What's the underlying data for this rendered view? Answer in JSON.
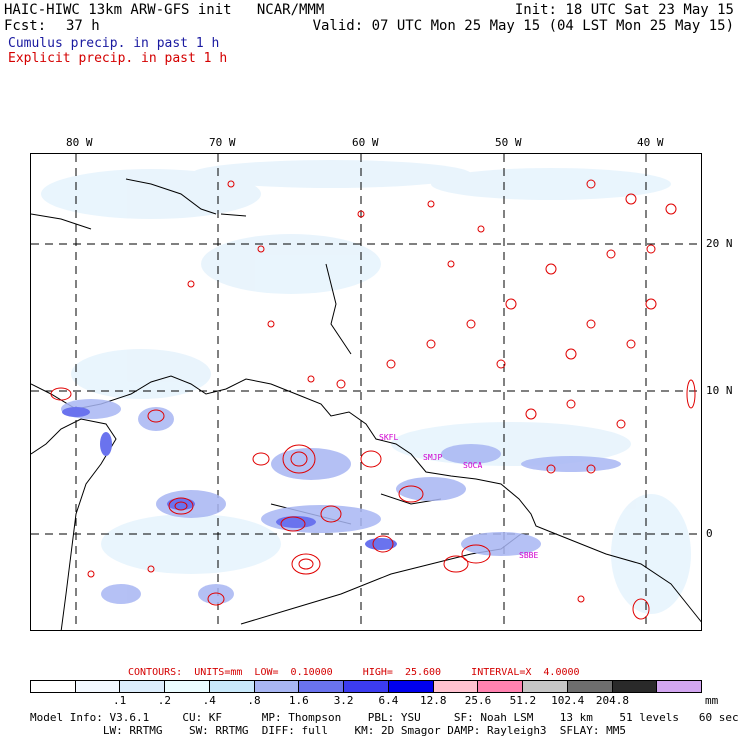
{
  "header": {
    "title": "HAIC-HIWC 13km ARW-GFS init   NCAR/MMM",
    "init": "Init: 18 UTC Sat 23 May 15",
    "fcst_label": "Fcst:",
    "fcst_value": "37 h",
    "valid": "Valid: 07 UTC Mon 25 May 15 (04 LST Mon 25 May 15)",
    "cumulus": "Cumulus precip. in past 1 h",
    "explicit": "Explicit precip. in past 1 h"
  },
  "map": {
    "lon_labels": [
      "80 W",
      "70 W",
      "60 W",
      "50 W",
      "40 W"
    ],
    "lat_labels": [
      "20 N",
      "10 N",
      "0"
    ],
    "stations": [
      "SKFL",
      "SMJP",
      "SOCA",
      "SBBE"
    ]
  },
  "contours": {
    "label": "CONTOURS:  UNITS=mm  LOW=  0.10000     HIGH=  25.600     INTERVAL=X  4.0000"
  },
  "colorbar": {
    "ticks": [
      ".1",
      ".2",
      ".4",
      ".8",
      "1.6",
      "3.2",
      "6.4",
      "12.8",
      "25.6",
      "51.2",
      "102.4",
      "204.8"
    ],
    "unit": "mm",
    "colors": [
      "#ffffff",
      "#f2f8ff",
      "#dcedfc",
      "#eafcff",
      "#c9e9fb",
      "#a8b6f3",
      "#6a73ee",
      "#3c3cf0",
      "#0000ee",
      "#ffc2d0",
      "#ff82b0",
      "#c6c6c6",
      "#6e6e6e",
      "#2a2a2a",
      "#d2a6f0"
    ]
  },
  "info": {
    "line1": "Model Info: V3.6.1     CU: KF      MP: Thompson    PBL: YSU     SF: Noah LSM    13 km    51 levels   60 sec",
    "line2": "           LW: RRTMG    SW: RRTMG  DIFF: full    KM: 2D Smagor DAMP: Rayleigh3  SFLAY: MM5"
  }
}
